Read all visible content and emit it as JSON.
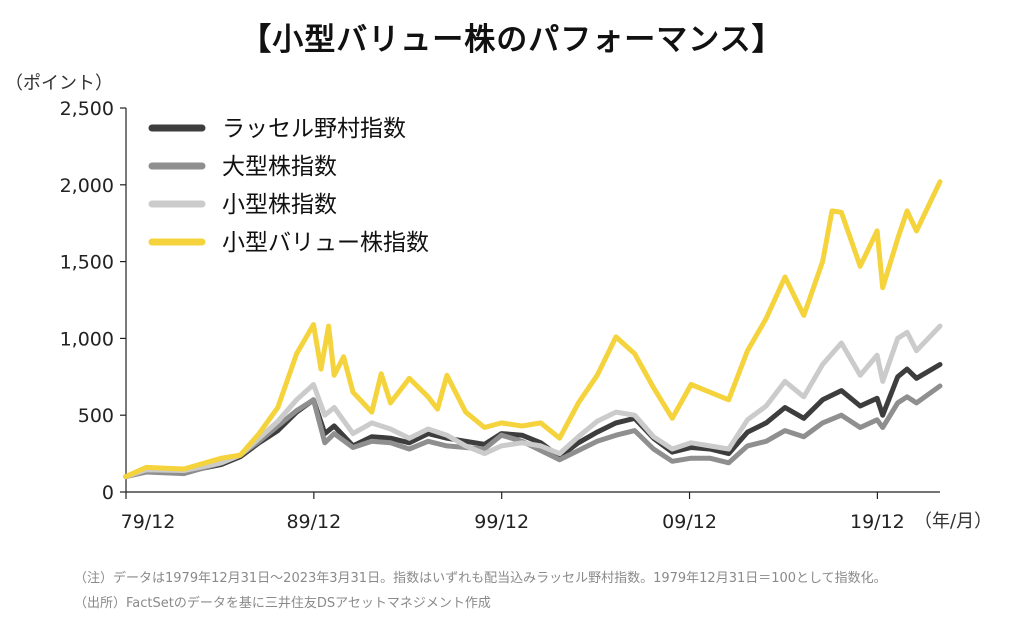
{
  "title": "【小型バリュー株のパフォーマンス】",
  "y_unit_label": "（ポイント）",
  "x_unit_label": "（年/月）",
  "notes": [
    "（注）データは1979年12月31日〜2023年3月31日。指数はいずれも配当込みラッセル野村指数。1979年12月31日＝100として指数化。",
    "（出所）FactSetのデータを基に三井住友DSアセットマネジメント作成"
  ],
  "colors": {
    "russell_nomura": "#3d3d3d",
    "large_cap": "#8f8f8f",
    "small_cap": "#cbcbcb",
    "small_value": "#f4d33c"
  },
  "chart_data": {
    "type": "line",
    "title": "【小型バリュー株のパフォーマンス】",
    "ylabel": "（ポイント）",
    "xlabel": "（年/月）",
    "ylim": [
      0,
      2500
    ],
    "xlim": [
      1979.917,
      2023.25
    ],
    "yticks": [
      {
        "value": 0,
        "label": "0"
      },
      {
        "value": 500,
        "label": "500"
      },
      {
        "value": 1000,
        "label": "1,000"
      },
      {
        "value": 1500,
        "label": "1,500"
      },
      {
        "value": 2000,
        "label": "2,000"
      },
      {
        "value": 2500,
        "label": "2,500"
      }
    ],
    "xticks": [
      {
        "value": 1979.917,
        "label": "79/12"
      },
      {
        "value": 1989.917,
        "label": "89/12"
      },
      {
        "value": 1999.917,
        "label": "99/12"
      },
      {
        "value": 2009.917,
        "label": "09/12"
      },
      {
        "value": 2019.917,
        "label": "19/12"
      }
    ],
    "legend_position": "top-left",
    "series": [
      {
        "name": "ラッセル野村指数",
        "color_key": "russell_nomura",
        "points": [
          [
            1979.9,
            100
          ],
          [
            1981,
            140
          ],
          [
            1983,
            130
          ],
          [
            1985,
            180
          ],
          [
            1986,
            230
          ],
          [
            1987,
            320
          ],
          [
            1988,
            400
          ],
          [
            1989,
            520
          ],
          [
            1989.9,
            600
          ],
          [
            1990.5,
            380
          ],
          [
            1991,
            430
          ],
          [
            1992,
            300
          ],
          [
            1993,
            360
          ],
          [
            1994,
            350
          ],
          [
            1995,
            320
          ],
          [
            1996,
            380
          ],
          [
            1997,
            350
          ],
          [
            1998,
            330
          ],
          [
            1999,
            310
          ],
          [
            1999.9,
            380
          ],
          [
            2001,
            370
          ],
          [
            2002,
            320
          ],
          [
            2003,
            230
          ],
          [
            2004,
            320
          ],
          [
            2005,
            390
          ],
          [
            2006,
            450
          ],
          [
            2007,
            480
          ],
          [
            2008,
            350
          ],
          [
            2009,
            260
          ],
          [
            2010,
            290
          ],
          [
            2011,
            280
          ],
          [
            2012,
            250
          ],
          [
            2013,
            390
          ],
          [
            2014,
            450
          ],
          [
            2015,
            550
          ],
          [
            2016,
            480
          ],
          [
            2017,
            600
          ],
          [
            2018,
            660
          ],
          [
            2019,
            560
          ],
          [
            2019.9,
            610
          ],
          [
            2020.2,
            500
          ],
          [
            2021,
            750
          ],
          [
            2021.5,
            800
          ],
          [
            2022,
            740
          ],
          [
            2023.25,
            830
          ]
        ]
      },
      {
        "name": "大型株指数",
        "color_key": "large_cap",
        "points": [
          [
            1979.9,
            100
          ],
          [
            1981,
            130
          ],
          [
            1983,
            120
          ],
          [
            1985,
            190
          ],
          [
            1986,
            240
          ],
          [
            1987,
            330
          ],
          [
            1988,
            430
          ],
          [
            1989,
            530
          ],
          [
            1989.9,
            600
          ],
          [
            1990.5,
            320
          ],
          [
            1991,
            380
          ],
          [
            1992,
            290
          ],
          [
            1993,
            330
          ],
          [
            1994,
            320
          ],
          [
            1995,
            280
          ],
          [
            1996,
            330
          ],
          [
            1997,
            300
          ],
          [
            1998,
            290
          ],
          [
            1999,
            280
          ],
          [
            1999.9,
            370
          ],
          [
            2001,
            330
          ],
          [
            2002,
            270
          ],
          [
            2003,
            210
          ],
          [
            2004,
            270
          ],
          [
            2005,
            330
          ],
          [
            2006,
            370
          ],
          [
            2007,
            400
          ],
          [
            2008,
            280
          ],
          [
            2009,
            200
          ],
          [
            2010,
            220
          ],
          [
            2011,
            220
          ],
          [
            2012,
            190
          ],
          [
            2013,
            300
          ],
          [
            2014,
            330
          ],
          [
            2015,
            400
          ],
          [
            2016,
            360
          ],
          [
            2017,
            450
          ],
          [
            2018,
            500
          ],
          [
            2019,
            420
          ],
          [
            2019.9,
            470
          ],
          [
            2020.2,
            420
          ],
          [
            2021,
            580
          ],
          [
            2021.5,
            620
          ],
          [
            2022,
            580
          ],
          [
            2023.25,
            690
          ]
        ]
      },
      {
        "name": "小型株指数",
        "color_key": "small_cap",
        "points": [
          [
            1979.9,
            100
          ],
          [
            1981,
            145
          ],
          [
            1983,
            140
          ],
          [
            1985,
            190
          ],
          [
            1986,
            240
          ],
          [
            1987,
            350
          ],
          [
            1988,
            460
          ],
          [
            1989,
            600
          ],
          [
            1989.9,
            700
          ],
          [
            1990.5,
            500
          ],
          [
            1991,
            550
          ],
          [
            1992,
            380
          ],
          [
            1993,
            450
          ],
          [
            1994,
            410
          ],
          [
            1995,
            350
          ],
          [
            1996,
            410
          ],
          [
            1997,
            370
          ],
          [
            1998,
            300
          ],
          [
            1999,
            250
          ],
          [
            1999.9,
            300
          ],
          [
            2001,
            320
          ],
          [
            2002,
            300
          ],
          [
            2003,
            250
          ],
          [
            2004,
            360
          ],
          [
            2005,
            460
          ],
          [
            2006,
            520
          ],
          [
            2007,
            500
          ],
          [
            2008,
            360
          ],
          [
            2009,
            280
          ],
          [
            2010,
            320
          ],
          [
            2011,
            300
          ],
          [
            2012,
            280
          ],
          [
            2013,
            470
          ],
          [
            2014,
            560
          ],
          [
            2015,
            720
          ],
          [
            2016,
            620
          ],
          [
            2017,
            830
          ],
          [
            2018,
            970
          ],
          [
            2019,
            760
          ],
          [
            2019.9,
            890
          ],
          [
            2020.2,
            720
          ],
          [
            2021,
            1000
          ],
          [
            2021.5,
            1040
          ],
          [
            2022,
            920
          ],
          [
            2023.25,
            1080
          ]
        ]
      },
      {
        "name": "小型バリュー株指数",
        "color_key": "small_value",
        "points": [
          [
            1979.9,
            100
          ],
          [
            1981,
            160
          ],
          [
            1983,
            150
          ],
          [
            1985,
            220
          ],
          [
            1986,
            240
          ],
          [
            1987,
            380
          ],
          [
            1988,
            550
          ],
          [
            1989,
            900
          ],
          [
            1989.9,
            1090
          ],
          [
            1990.3,
            800
          ],
          [
            1990.7,
            1080
          ],
          [
            1991,
            760
          ],
          [
            1991.5,
            880
          ],
          [
            1992,
            650
          ],
          [
            1993,
            520
          ],
          [
            1993.5,
            770
          ],
          [
            1994,
            580
          ],
          [
            1995,
            740
          ],
          [
            1996,
            620
          ],
          [
            1996.5,
            540
          ],
          [
            1997,
            760
          ],
          [
            1998,
            520
          ],
          [
            1999,
            420
          ],
          [
            1999.9,
            450
          ],
          [
            2001,
            430
          ],
          [
            2002,
            450
          ],
          [
            2003,
            350
          ],
          [
            2004,
            580
          ],
          [
            2005,
            760
          ],
          [
            2006,
            1010
          ],
          [
            2007,
            900
          ],
          [
            2008,
            680
          ],
          [
            2009,
            480
          ],
          [
            2010,
            700
          ],
          [
            2011,
            650
          ],
          [
            2012,
            600
          ],
          [
            2013,
            920
          ],
          [
            2014,
            1130
          ],
          [
            2015,
            1400
          ],
          [
            2016,
            1150
          ],
          [
            2017,
            1500
          ],
          [
            2017.5,
            1830
          ],
          [
            2018,
            1820
          ],
          [
            2019,
            1470
          ],
          [
            2019.9,
            1700
          ],
          [
            2020.2,
            1330
          ],
          [
            2021,
            1650
          ],
          [
            2021.5,
            1830
          ],
          [
            2022,
            1700
          ],
          [
            2023.25,
            2020
          ]
        ]
      }
    ]
  }
}
